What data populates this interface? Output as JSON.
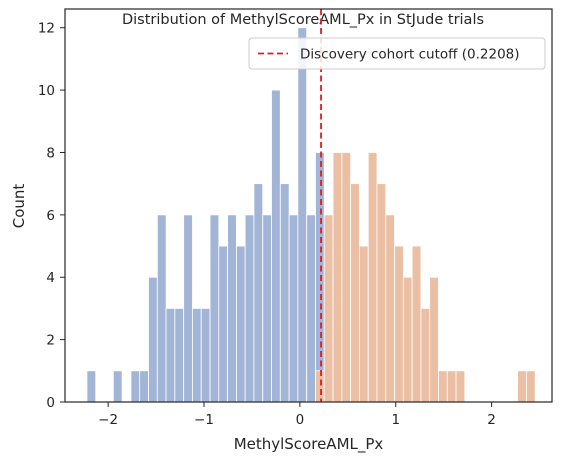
{
  "chart_data": {
    "type": "bar",
    "title": "Distribution of MethylScoreAML_Px in StJude trials",
    "xlabel": "MethylScoreAML_Px",
    "ylabel": "Count",
    "xlim": [
      -2.45,
      2.63
    ],
    "ylim": [
      0,
      12.6
    ],
    "xticks": [
      -2,
      -1,
      0,
      1,
      2
    ],
    "xtick_labels": [
      "−2",
      "−1",
      "0",
      "1",
      "2"
    ],
    "yticks": [
      0,
      2,
      4,
      6,
      8,
      10,
      12
    ],
    "ytick_labels": [
      "0",
      "2",
      "4",
      "6",
      "8",
      "10",
      "12"
    ],
    "grid": false,
    "legend_position": "top-right",
    "cutoff": {
      "value": 0.2208,
      "label": "Discovery cohort cutoff (0.2208)",
      "color": "#e41a1c",
      "style": "dashed"
    },
    "bin_width": 0.0917,
    "series": [
      {
        "color": "#a3b5d6",
        "bin_starts": [
          -2.221,
          -2.129,
          -2.037,
          -1.946,
          -1.854,
          -1.762,
          -1.671,
          -1.579,
          -1.487,
          -1.396,
          -1.304,
          -1.212,
          -1.121,
          -1.029,
          -0.937,
          -0.846,
          -0.754,
          -0.662,
          -0.571,
          -0.479,
          -0.387,
          -0.296,
          -0.204,
          -0.112,
          -0.021,
          0.071,
          0.163
        ],
        "counts": [
          1,
          0,
          0,
          1,
          0,
          1,
          1,
          4,
          6,
          3,
          3,
          6,
          3,
          3,
          6,
          5,
          6,
          5,
          6,
          7,
          6,
          10,
          7,
          6,
          12,
          6,
          8
        ]
      },
      {
        "color": "#ebbfa3",
        "bin_starts": [
          0.163,
          0.254,
          0.346,
          0.438,
          0.529,
          0.621,
          0.713,
          0.804,
          0.896,
          0.988,
          1.079,
          1.171,
          1.263,
          1.354,
          1.446,
          1.538,
          1.629,
          1.721,
          1.813,
          1.904,
          1.996,
          2.088,
          2.179,
          2.271,
          2.363
        ],
        "counts": [
          1,
          6,
          8,
          8,
          7,
          5,
          8,
          7,
          6,
          5,
          4,
          5,
          3,
          4,
          1,
          1,
          1,
          0,
          0,
          0,
          0,
          0,
          0,
          1,
          1
        ]
      }
    ]
  }
}
